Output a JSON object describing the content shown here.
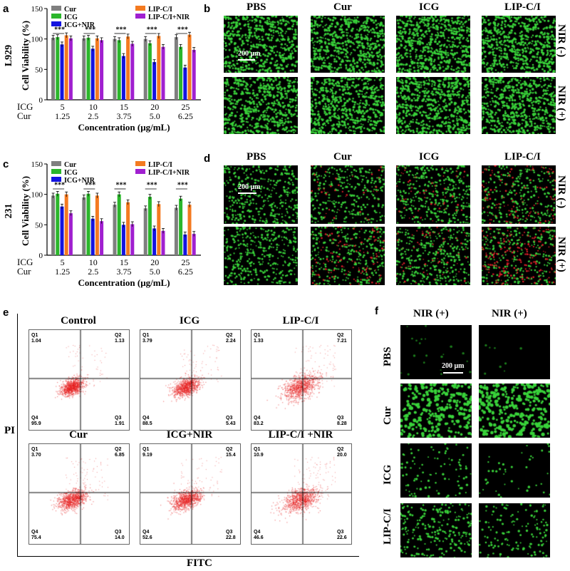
{
  "panels": {
    "a": "a",
    "b": "b",
    "c": "c",
    "d": "d",
    "e": "e",
    "f": "f"
  },
  "colors": {
    "Cur": "#7f7f7f",
    "ICG": "#2bb62b",
    "ICG+NIR": "#1414e0",
    "LIP-C/I": "#f47a20",
    "LIP-C/I+NIR": "#a020d0"
  },
  "chart_a": {
    "rowlabel": "L929",
    "ylabel": "Cell Viability (%)",
    "xlabel": "Concentration (μg/mL)",
    "yticks": [
      "0",
      "50",
      "100",
      "150"
    ],
    "legend": [
      "Cur",
      "ICG",
      "ICG+NIR",
      "LIP-C/I",
      "LIP-C/I+NIR"
    ],
    "icg_label": "ICG",
    "cur_label": "Cur",
    "icg_vals": [
      "5",
      "10",
      "15",
      "20",
      "25"
    ],
    "cur_vals": [
      "1.25",
      "2.5",
      "3.75",
      "5.0",
      "6.25"
    ],
    "sig": "***"
  },
  "chart_c": {
    "rowlabel": "231",
    "ylabel": "Cell Viability (%)",
    "xlabel": "Concentration (μg/mL)",
    "yticks": [
      "0",
      "50",
      "100",
      "150"
    ],
    "legend": [
      "Cur",
      "ICG",
      "ICG+NIR",
      "LIP-C/I",
      "LIP-C/I+NIR"
    ],
    "icg_label": "ICG",
    "cur_label": "Cur",
    "icg_vals": [
      "5",
      "10",
      "15",
      "20",
      "25"
    ],
    "cur_vals": [
      "1.25",
      "2.5",
      "3.75",
      "5.0",
      "6.25"
    ],
    "sig": "***"
  },
  "chart_data": [
    {
      "type": "bar",
      "categories": [
        "5 / 1.25",
        "10 / 2.5",
        "15 / 3.75",
        "20 / 5.0",
        "25 / 6.25"
      ],
      "series": [
        {
          "name": "Cur",
          "values": [
            102,
            101,
            100,
            100,
            103
          ]
        },
        {
          "name": "ICG",
          "values": [
            103,
            102,
            98,
            93,
            87
          ]
        },
        {
          "name": "ICG+NIR",
          "values": [
            91,
            84,
            72,
            62,
            53
          ]
        },
        {
          "name": "LIP-C/I",
          "values": [
            106,
            101,
            104,
            105,
            107
          ]
        },
        {
          "name": "LIP-C/I+NIR",
          "values": [
            101,
            98,
            92,
            87,
            82
          ]
        }
      ],
      "ylabel": "Cell Viability (%)",
      "xlabel": "Concentration (μg/mL)",
      "ylim": [
        0,
        150
      ]
    },
    {
      "type": "bar",
      "categories": [
        "5 / 1.25",
        "10 / 2.5",
        "15 / 3.75",
        "20 / 5.0",
        "25 / 6.25"
      ],
      "series": [
        {
          "name": "Cur",
          "values": [
            98,
            95,
            83,
            77,
            78
          ]
        },
        {
          "name": "ICG",
          "values": [
            101,
            101,
            100,
            96,
            93
          ]
        },
        {
          "name": "ICG+NIR",
          "values": [
            80,
            60,
            50,
            44,
            34
          ]
        },
        {
          "name": "LIP-C/I",
          "values": [
            100,
            98,
            87,
            84,
            83
          ]
        },
        {
          "name": "LIP-C/I+NIR",
          "values": [
            69,
            56,
            51,
            40,
            35
          ]
        }
      ],
      "ylabel": "Cell Viability (%)",
      "xlabel": "Concentration (μg/mL)",
      "ylim": [
        0,
        150
      ]
    }
  ],
  "panel_b": {
    "headers": [
      "PBS",
      "Cur",
      "ICG",
      "LIP-C/I"
    ],
    "nir_minus": "NIR (-)",
    "nir_plus": "NIR (+)",
    "scale": "200 μm"
  },
  "panel_d": {
    "headers": [
      "PBS",
      "Cur",
      "ICG",
      "LIP-C/I"
    ],
    "nir_minus": "NIR (-)",
    "nir_plus": "NIR (+)",
    "scale": "200 μm"
  },
  "panel_e": {
    "ylabel": "PI",
    "xlabel": "FITC",
    "plots": [
      {
        "title": "Control",
        "q1": "1.04",
        "q2": "1.13",
        "q3": "1.91",
        "q4": "95.9"
      },
      {
        "title": "ICG",
        "q1": "3.79",
        "q2": "2.24",
        "q3": "5.43",
        "q4": "88.5"
      },
      {
        "title": "LIP-C/I",
        "q1": "1.33",
        "q2": "7.21",
        "q3": "8.28",
        "q4": "83.2"
      },
      {
        "title": "Cur",
        "q1": "3.70",
        "q2": "6.85",
        "q3": "14.0",
        "q4": "75.4"
      },
      {
        "title": "ICG+NIR",
        "q1": "9.19",
        "q2": "15.4",
        "q3": "22.8",
        "q4": "52.6"
      },
      {
        "title": "LIP-C/I +NIR",
        "q1": "10.9",
        "q2": "20.0",
        "q3": "22.6",
        "q4": "46.6"
      }
    ],
    "qnames": [
      "Q1",
      "Q2",
      "Q3",
      "Q4"
    ]
  },
  "panel_f": {
    "headers": [
      "NIR (+)",
      "NIR (+)"
    ],
    "rows": [
      "PBS",
      "Cur",
      "ICG",
      "LIP-C/I"
    ],
    "scale": "200 μm"
  }
}
